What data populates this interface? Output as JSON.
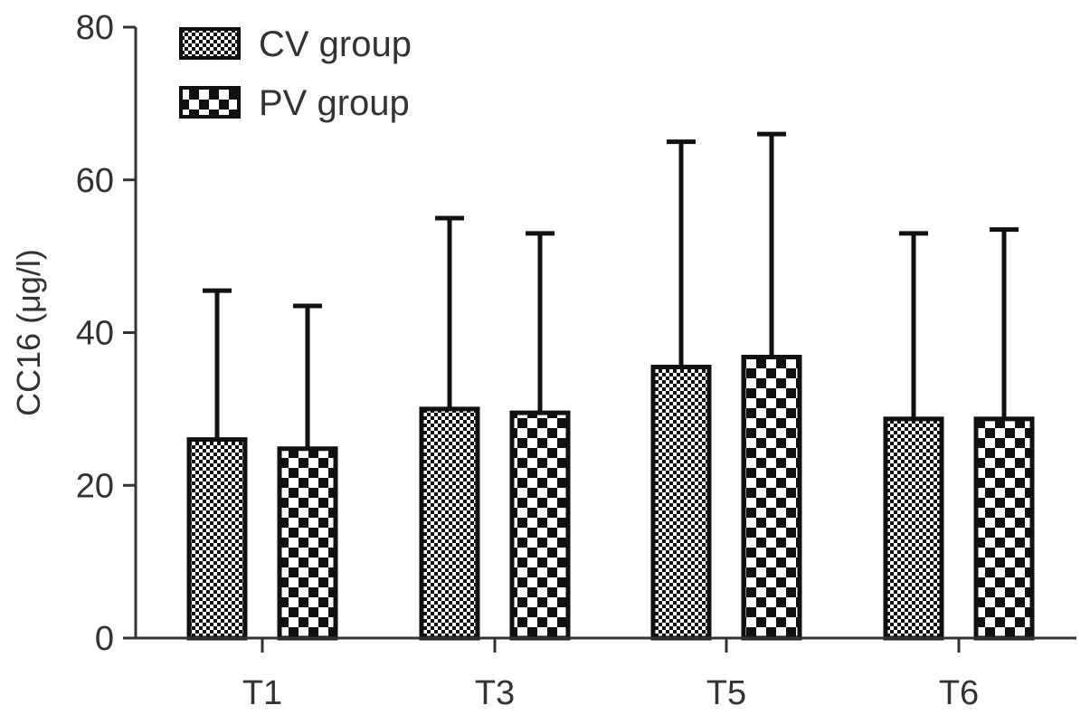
{
  "chart_data": {
    "type": "bar",
    "ylabel": "CC16 (μg/l)",
    "xlabel": "",
    "ylim": [
      0,
      80
    ],
    "yticks": [
      "0",
      "20",
      "40",
      "60",
      "80"
    ],
    "categories": [
      "T1",
      "T3",
      "T5",
      "T6"
    ],
    "series": [
      {
        "name": "CV group",
        "pattern": "fine-checker",
        "values": [
          26,
          30,
          35.5,
          28.7
        ],
        "error_upper": [
          45.5,
          55,
          65,
          53
        ]
      },
      {
        "name": "PV group",
        "pattern": "coarse-checker",
        "values": [
          24.8,
          29.5,
          36.8,
          28.7
        ],
        "error_upper": [
          43.5,
          53,
          66,
          53.5
        ]
      }
    ],
    "grid": false,
    "legend_position": "top-left",
    "colors": {
      "ink": "#111111",
      "axis": "#333333",
      "fill_light": "#ffffff"
    }
  }
}
